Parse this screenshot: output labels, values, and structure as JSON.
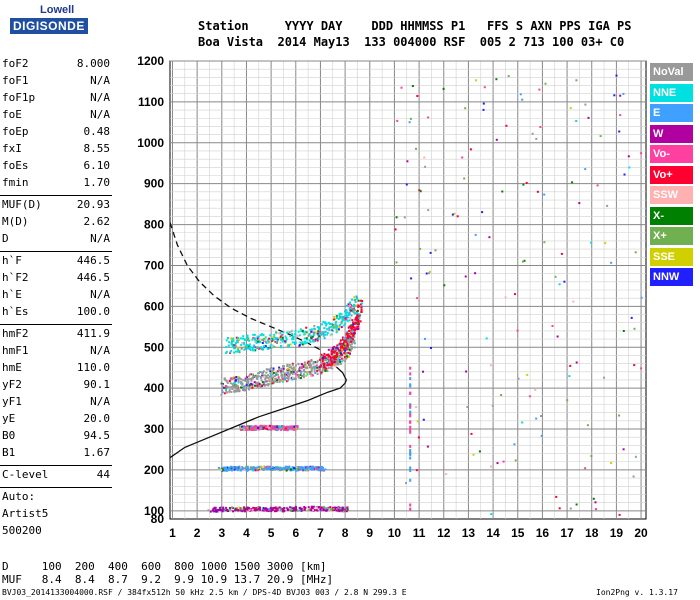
{
  "logo": {
    "line1": "Lowell",
    "line2": "DIGISONDE"
  },
  "header": {
    "row1": "Station     YYYY DAY    DDD HHMMSS P1   FFS S AXN PPS IGA PS",
    "row2": "Boa Vista  2014 May13  133 004000 RSF  005 2 713 100 03+ C0"
  },
  "params_group1": [
    {
      "name": "foF2",
      "value": "8.000"
    },
    {
      "name": "foF1",
      "value": "N/A"
    },
    {
      "name": "foF1p",
      "value": "N/A"
    },
    {
      "name": "foE",
      "value": "N/A"
    },
    {
      "name": "foEp",
      "value": "0.48"
    },
    {
      "name": "fxI",
      "value": "8.55"
    },
    {
      "name": "foEs",
      "value": "6.10"
    },
    {
      "name": "fmin",
      "value": "1.70"
    }
  ],
  "params_group2": [
    {
      "name": "MUF(D)",
      "value": "20.93"
    },
    {
      "name": "M(D)",
      "value": "2.62"
    },
    {
      "name": "D",
      "value": "N/A"
    }
  ],
  "params_group3": [
    {
      "name": "h`F",
      "value": "446.5"
    },
    {
      "name": "h`F2",
      "value": "446.5"
    },
    {
      "name": "h`E",
      "value": "N/A"
    },
    {
      "name": "h`Es",
      "value": "100.0"
    }
  ],
  "params_group4": [
    {
      "name": "hmF2",
      "value": "411.9"
    },
    {
      "name": "hmF1",
      "value": "N/A"
    },
    {
      "name": "hmE",
      "value": "110.0"
    },
    {
      "name": "yF2",
      "value": "90.1"
    },
    {
      "name": "yF1",
      "value": "N/A"
    },
    {
      "name": "yE",
      "value": "20.0"
    },
    {
      "name": "B0",
      "value": "94.5"
    },
    {
      "name": "B1",
      "value": "1.67"
    }
  ],
  "c_level": {
    "name": "C-level",
    "value": "44"
  },
  "auto": [
    "Auto:",
    "Artist5",
    "500200"
  ],
  "muf_table": {
    "row_d": "D     100  200  400  600  800 1000 1500 3000 [km]",
    "row_muf": "MUF   8.4  8.4  8.7  9.2  9.9 10.9 13.7 20.9 [MHz]"
  },
  "footer": {
    "file": "BVJ03_2014133004000.RSF / 384fx512h 50 kHz 2.5 km / DPS-4D BVJ03 003 / 2.8 N 299.3 E",
    "version": "Ion2Png v. 1.3.17"
  },
  "legend": [
    {
      "label": "NoVal",
      "color": "#999999"
    },
    {
      "label": "NNE",
      "color": "#00e0e0"
    },
    {
      "label": "E",
      "color": "#3fa0ff"
    },
    {
      "label": "W",
      "color": "#b000a0"
    },
    {
      "label": "Vo-",
      "color": "#ff40a0"
    },
    {
      "label": "Vo+",
      "color": "#ff0030"
    },
    {
      "label": "SSW",
      "color": "#ffb0b0"
    },
    {
      "label": "X-",
      "color": "#008000"
    },
    {
      "label": "X+",
      "color": "#70b050"
    },
    {
      "label": "SSE",
      "color": "#d0d000"
    },
    {
      "label": "NNW",
      "color": "#2020ff"
    }
  ],
  "chart_data": {
    "type": "scatter",
    "title": "",
    "xlabel": "",
    "ylabel": "",
    "xlim": [
      0.9,
      20.2
    ],
    "ylim": [
      80,
      1200
    ],
    "x_ticks": [
      1,
      2,
      3,
      4,
      5,
      6,
      7,
      8,
      9,
      10,
      11,
      12,
      13,
      14,
      15,
      16,
      17,
      18,
      19,
      20
    ],
    "y_ticks": [
      80,
      100,
      200,
      300,
      400,
      500,
      600,
      700,
      800,
      900,
      1000,
      1100,
      1200
    ],
    "grid": true,
    "series": [
      {
        "name": "NoVal",
        "trace": "F2 low",
        "x": [
          3.0,
          3.5,
          4.0,
          4.5,
          5.0,
          5.5,
          6.0,
          6.5,
          7.0,
          7.5,
          8.0,
          8.3
        ],
        "y": [
          405,
          412,
          418,
          425,
          432,
          438,
          444,
          450,
          458,
          470,
          490,
          520
        ]
      },
      {
        "name": "NNE",
        "trace": "F2 upper",
        "x": [
          3.2,
          3.8,
          4.5,
          5.2,
          6.0,
          6.8,
          7.5,
          8.0,
          8.4
        ],
        "y": [
          505,
          510,
          515,
          520,
          525,
          535,
          555,
          580,
          610
        ]
      },
      {
        "name": "Vo+",
        "trace": "F2 ordinary",
        "x": [
          7.0,
          7.4,
          7.8,
          8.1,
          8.4,
          8.6
        ],
        "y": [
          460,
          480,
          500,
          525,
          560,
          600
        ]
      },
      {
        "name": "Vo-",
        "trace": "Es 300",
        "x": [
          3.7,
          4.2,
          4.7,
          5.2,
          5.7,
          6.0
        ],
        "y": [
          305,
          305,
          306,
          305,
          304,
          305
        ]
      },
      {
        "name": "E",
        "trace": "Es 200",
        "x": [
          2.9,
          3.5,
          4.2,
          5.0,
          5.8,
          6.5,
          7.1
        ],
        "y": [
          205,
          206,
          205,
          207,
          205,
          206,
          205
        ]
      },
      {
        "name": "W",
        "trace": "Es 100",
        "x": [
          2.5,
          3.5,
          4.5,
          5.5,
          6.5,
          7.5,
          8.0
        ],
        "y": [
          105,
          106,
          107,
          106,
          108,
          107,
          106
        ]
      }
    ],
    "profile_solid": {
      "x": [
        0.9,
        1.5,
        2.5,
        3.5,
        4.5,
        5.5,
        6.5,
        7.3,
        7.8,
        8.0,
        8.05,
        7.9,
        7.5,
        7.1
      ],
      "y": [
        230,
        255,
        280,
        305,
        330,
        350,
        370,
        390,
        400,
        412,
        420,
        438,
        460,
        480
      ]
    },
    "profile_dashed": {
      "x": [
        0.9,
        1.2,
        1.6,
        2.1,
        2.7,
        3.4,
        4.2,
        5.0,
        5.8,
        6.5,
        7.1
      ],
      "y": [
        805,
        750,
        700,
        660,
        625,
        595,
        570,
        550,
        530,
        510,
        490
      ]
    }
  }
}
